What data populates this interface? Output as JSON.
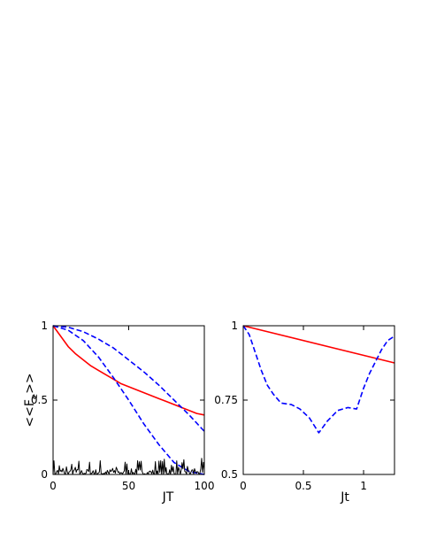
{
  "chart_data": [
    {
      "type": "line",
      "title": "",
      "xlabel": "JT",
      "ylabel": "<<Fe>>",
      "ylabel_main": "<<F",
      "ylabel_sub": "e",
      "ylabel_tail": ">>",
      "xlim": [
        0,
        100
      ],
      "ylim": [
        0,
        1.0
      ],
      "xticks": [
        0,
        50,
        100
      ],
      "xtick_labels": [
        "0",
        "50",
        "100"
      ],
      "yticks": [
        0,
        0.5,
        1.0
      ],
      "ytick_labels": [
        "0",
        "0.5",
        "1"
      ],
      "grid": false,
      "series": [
        {
          "color": "#ff0000",
          "style": "solid",
          "x": [
            0,
            5,
            10,
            15,
            20,
            25,
            30,
            35,
            40,
            45,
            50,
            55,
            60,
            65,
            70,
            75,
            80,
            85,
            90,
            95,
            100
          ],
          "y": [
            1.0,
            0.93,
            0.86,
            0.81,
            0.77,
            0.73,
            0.7,
            0.67,
            0.64,
            0.61,
            0.59,
            0.57,
            0.55,
            0.53,
            0.51,
            0.49,
            0.47,
            0.45,
            0.43,
            0.41,
            0.4
          ]
        },
        {
          "color": "#0000ff",
          "style": "dashed",
          "x": [
            0,
            10,
            20,
            30,
            40,
            50,
            60,
            70,
            80,
            90,
            100
          ],
          "y": [
            1.0,
            0.99,
            0.96,
            0.91,
            0.85,
            0.77,
            0.69,
            0.6,
            0.5,
            0.4,
            0.29
          ]
        },
        {
          "color": "#0000ff",
          "style": "dashed",
          "x": [
            0,
            10,
            20,
            30,
            40,
            50,
            60,
            70,
            80,
            90,
            95,
            100
          ],
          "y": [
            1.0,
            0.97,
            0.9,
            0.79,
            0.65,
            0.5,
            0.34,
            0.2,
            0.08,
            0.02,
            0.01,
            0.0
          ]
        },
        {
          "color": "#000000",
          "style": "noise",
          "x": [
            0,
            100
          ],
          "y_range": [
            0.0,
            0.11
          ]
        }
      ]
    },
    {
      "type": "line",
      "title": "",
      "xlabel": "Jt",
      "ylabel": "",
      "xlim": [
        0,
        1.257
      ],
      "ylim": [
        0.5,
        1.0
      ],
      "xticks": [
        0,
        0.5,
        1.0
      ],
      "xtick_labels": [
        "0",
        "0.5",
        "1"
      ],
      "yticks": [
        0.5,
        0.75,
        1.0
      ],
      "ytick_labels": [
        "0.5",
        "0.75",
        "1"
      ],
      "grid": false,
      "series": [
        {
          "color": "#ff0000",
          "style": "solid",
          "x": [
            0,
            1.257
          ],
          "y": [
            1.0,
            0.875
          ]
        },
        {
          "color": "#0000ff",
          "style": "dashed",
          "x": [
            0.0,
            0.05,
            0.1,
            0.15,
            0.2,
            0.25,
            0.314,
            0.4,
            0.471,
            0.55,
            0.628,
            0.7,
            0.785,
            0.87,
            0.942,
            1.0,
            1.05,
            1.1,
            1.15,
            1.2,
            1.257
          ],
          "y": [
            1.0,
            0.97,
            0.91,
            0.85,
            0.8,
            0.77,
            0.74,
            0.735,
            0.72,
            0.69,
            0.64,
            0.68,
            0.715,
            0.725,
            0.72,
            0.79,
            0.84,
            0.88,
            0.92,
            0.95,
            0.965
          ]
        }
      ]
    }
  ]
}
